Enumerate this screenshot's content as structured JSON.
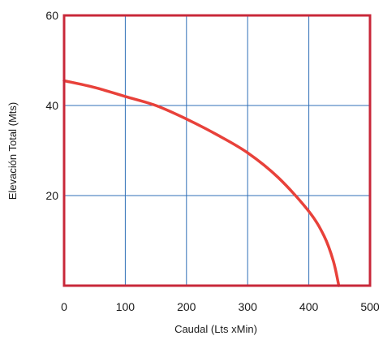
{
  "chart_data": {
    "type": "line",
    "title": "",
    "xlabel": "Caudal (Lts xMin)",
    "ylabel": "Elevación  Total (Mts)",
    "xlim": [
      0,
      500
    ],
    "ylim": [
      0,
      60
    ],
    "x_ticks": [
      0,
      100,
      200,
      300,
      400,
      500
    ],
    "x_tick_labels": [
      "0",
      "100",
      "200",
      "300",
      "400",
      "500"
    ],
    "y_ticks": [
      20,
      40,
      60
    ],
    "y_tick_labels": [
      "20",
      "40",
      "60"
    ],
    "grid": true,
    "legend": "none",
    "colors": {
      "frame": "#c8283a",
      "grid": "#2f6fb7",
      "curve": "#e8413a"
    },
    "series": [
      {
        "x": [
          0,
          50,
          100,
          150,
          200,
          250,
          300,
          350,
          400,
          425,
          440,
          449
        ],
        "y": [
          45.5,
          44.0,
          42.0,
          40.0,
          37.0,
          33.5,
          29.5,
          24.0,
          16.5,
          11.0,
          5.5,
          0
        ]
      }
    ]
  }
}
